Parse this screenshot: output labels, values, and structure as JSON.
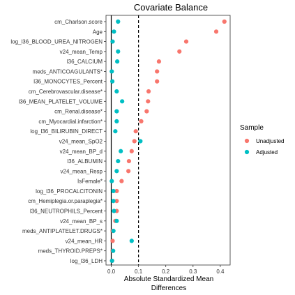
{
  "chart_data": {
    "type": "scatter",
    "title": "Covariate Balance",
    "xlabel": [
      "Absolute Standardized Mean",
      "Differences"
    ],
    "xlim": [
      -0.01,
      0.43
    ],
    "xticks": [
      0.0,
      0.1,
      0.2,
      0.3,
      0.4
    ],
    "xtick_labels": [
      "0.0",
      "0.1",
      "0.2",
      "0.3",
      "0.4"
    ],
    "threshold_lines": [
      0,
      0.1
    ],
    "legend": {
      "title": "Sample",
      "placement": "right",
      "entries": [
        {
          "label": "Unadjusted",
          "color": "#F8766D"
        },
        {
          "label": "Adjusted",
          "color": "#00BFC4"
        }
      ]
    },
    "categories": [
      "cm_Charlson.score",
      "Age",
      "log_l36_BLOOD_UREA_NITROGEN",
      "v24_mean_Temp",
      "l36_CALCIUM",
      "meds_ANTICOAGULANTS*",
      "l36_MONOCYTES_Percent",
      "cm_Cerebrovascular.disease*",
      "l36_MEAN_PLATELET_VOLUME",
      "cm_Renal.disease*",
      "cm_Myocardial.infarction*",
      "log_l36_BILIRUBIN_DIRECT",
      "v24_mean_SpO2",
      "v24_mean_BP_d",
      "l36_ALBUMIN",
      "v24_mean_Resp",
      "IsFemale*",
      "log_l36_PROCALCITONIN",
      "cm_Hemiplegia.or.paraplegia*",
      "l36_NEUTROPHILS_Percent",
      "v24_mean_BP_s",
      "meds_ANTIPLATELET.DRUGS*",
      "v24_mean_HR",
      "meds_THYROID.PREPS*",
      "log_l36_LDH"
    ],
    "series": [
      {
        "name": "Unadjusted",
        "color": "#F8766D",
        "values": [
          0.415,
          0.385,
          0.275,
          0.25,
          0.175,
          0.168,
          0.168,
          0.137,
          0.135,
          0.13,
          0.11,
          0.09,
          0.085,
          0.075,
          0.065,
          0.063,
          0.038,
          0.02,
          0.02,
          0.02,
          0.015,
          0.005,
          0.005,
          0.005,
          0.003
        ]
      },
      {
        "name": "Adjusted",
        "color": "#00BFC4",
        "values": [
          0.025,
          0.01,
          0.005,
          0.025,
          0.022,
          0.002,
          0.004,
          0.02,
          0.04,
          0.02,
          0.02,
          0.015,
          0.107,
          0.035,
          0.025,
          0.02,
          0.002,
          0.008,
          0.008,
          0.01,
          0.02,
          0.008,
          0.075,
          0.007,
          0.003
        ]
      }
    ]
  }
}
